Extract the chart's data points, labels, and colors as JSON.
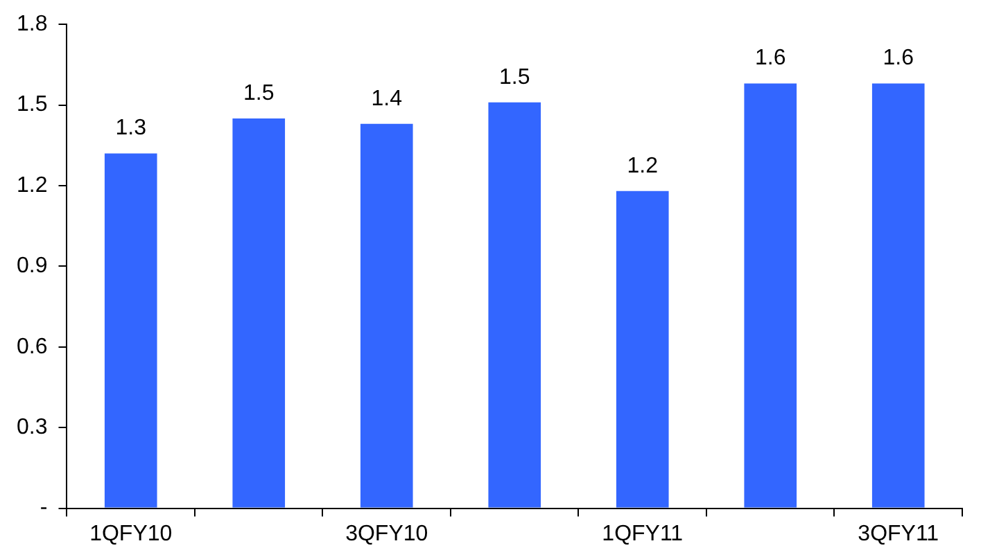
{
  "chart_data": {
    "type": "bar",
    "categories": [
      "1QFY10",
      null,
      "3QFY10",
      null,
      "1QFY11",
      null,
      "3QFY11"
    ],
    "values": [
      1.32,
      1.45,
      1.43,
      1.51,
      1.18,
      1.58,
      1.58
    ],
    "value_labels": [
      "1.3",
      "1.5",
      "1.4",
      "1.5",
      "1.2",
      "1.6",
      "1.6"
    ],
    "color": "#3366ff",
    "ylim": [
      0,
      1.8
    ],
    "yticks": [
      {
        "value": 0,
        "label": "-"
      },
      {
        "value": 0.3,
        "label": "0.3"
      },
      {
        "value": 0.6,
        "label": "0.6"
      },
      {
        "value": 0.9,
        "label": "0.9"
      },
      {
        "value": 1.2,
        "label": "1.2"
      },
      {
        "value": 1.5,
        "label": "1.5"
      },
      {
        "value": 1.8,
        "label": "1.8"
      }
    ],
    "grid": false,
    "legend": false
  }
}
